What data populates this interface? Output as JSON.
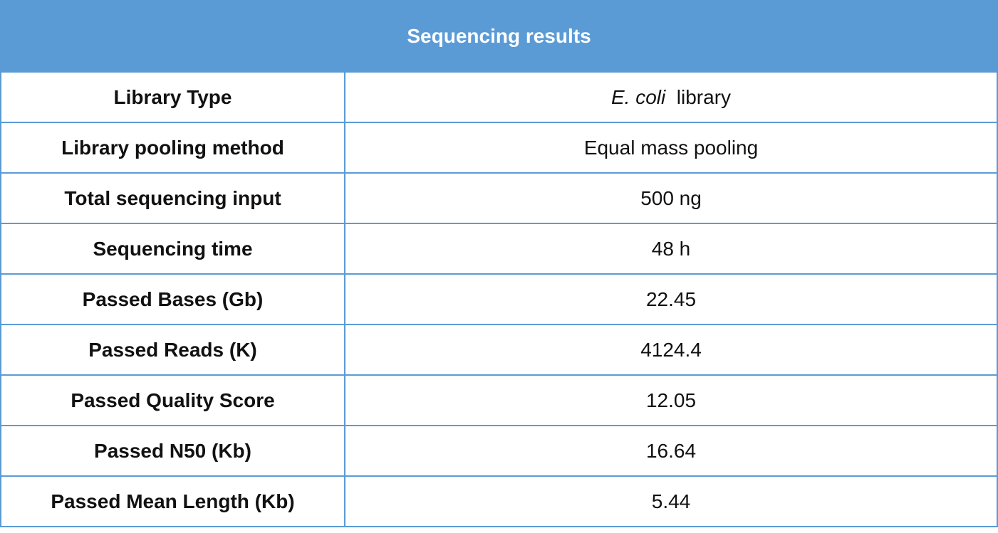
{
  "header": {
    "title": "Sequencing results",
    "color": "#5b9bd5"
  },
  "rows": [
    {
      "label": "Library Type",
      "value_italic": "E. coli",
      "value": "library"
    },
    {
      "label": "Library pooling method",
      "value": "Equal mass pooling"
    },
    {
      "label": "Total sequencing input",
      "value": "500 ng"
    },
    {
      "label": "Sequencing time",
      "value": "48 h"
    },
    {
      "label": "Passed Bases (Gb)",
      "value": "22.45"
    },
    {
      "label": "Passed Reads (K)",
      "value": "4124.4"
    },
    {
      "label": "Passed Quality Score",
      "value": "12.05"
    },
    {
      "label": "Passed N50 (Kb)",
      "value": "16.64"
    },
    {
      "label": "Passed Mean Length (Kb)",
      "value": "5.44"
    }
  ]
}
